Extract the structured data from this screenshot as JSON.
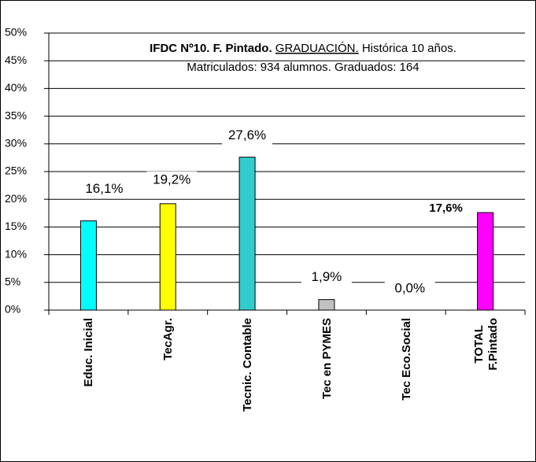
{
  "chart_data": {
    "type": "bar",
    "title_bold": "IFDC Nº10. F. Pintado.",
    "title_underlined": "GRADUACIÓN.",
    "title_rest": "Histórica 10 años.",
    "subtitle": "Matriculados: 934 alumnos. Graduados: 164",
    "categories": [
      "Educ. Inicial",
      "TecAgr.",
      "Tecnic. Contable",
      "Tec en PYMES",
      "Tec Eco.Social",
      "TOTAL\nF.Pintado"
    ],
    "values": [
      16.1,
      19.2,
      27.6,
      1.9,
      0.0,
      17.6
    ],
    "value_labels": [
      "16,1%",
      "19,2%",
      "27,6%",
      "1,9%",
      "0,0%",
      "17,6%"
    ],
    "value_label_bold": [
      false,
      false,
      false,
      false,
      false,
      true
    ],
    "colors": [
      "#00ffff",
      "#ffff00",
      "#33cccc",
      "#c0c0c0",
      "#808080",
      "#ff00ff"
    ],
    "ylim": [
      0,
      50
    ],
    "yticks": [
      {
        "value": 0,
        "label": "0%"
      },
      {
        "value": 5,
        "label": "5%"
      },
      {
        "value": 10,
        "label": "10%"
      },
      {
        "value": 15,
        "label": "15%"
      },
      {
        "value": 20,
        "label": "20%"
      },
      {
        "value": 25,
        "label": "25%"
      },
      {
        "value": 30,
        "label": "30%"
      },
      {
        "value": 35,
        "label": "35%"
      },
      {
        "value": 40,
        "label": "40%"
      },
      {
        "value": 45,
        "label": "45%"
      },
      {
        "value": 50,
        "label": "50%"
      }
    ],
    "grid": true
  }
}
